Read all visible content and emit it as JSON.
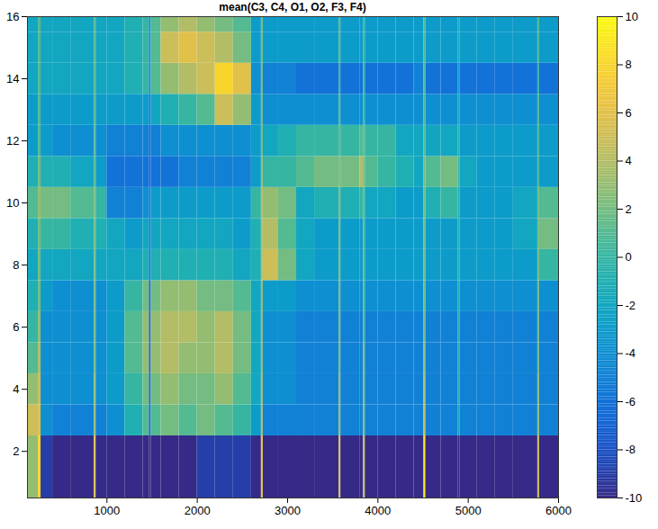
{
  "chart_data": {
    "type": "heatmap",
    "title": "mean(C3, C4, O1, O2, F3, F4)",
    "xlim": [
      120,
      6000
    ],
    "ylim": [
      0.5,
      16
    ],
    "xticks": [
      1000,
      2000,
      3000,
      4000,
      5000,
      6000
    ],
    "yticks": [
      2,
      4,
      6,
      8,
      10,
      12,
      14,
      16
    ],
    "x_edges": [
      120,
      240,
      270,
      400,
      600,
      860,
      880,
      1000,
      1200,
      1400,
      1470,
      1490,
      1600,
      1800,
      2000,
      2200,
      2400,
      2600,
      2710,
      2730,
      2900,
      3100,
      3300,
      3570,
      3590,
      3800,
      3840,
      3860,
      4000,
      4200,
      4400,
      4510,
      4530,
      4700,
      4890,
      4910,
      5100,
      5300,
      5500,
      5770,
      5790,
      6000
    ],
    "y_edges": [
      0.5,
      2.5,
      3.5,
      4.5,
      5.5,
      6.5,
      7.5,
      8.5,
      9.5,
      10.5,
      11.5,
      12.5,
      13.5,
      14.5,
      15.5,
      16
    ],
    "values": [
      [
        3,
        8,
        -9,
        -10,
        -10,
        6,
        -10,
        -10,
        -10,
        -10,
        -10,
        -10,
        -10,
        -10,
        -9,
        -9,
        -9,
        -10,
        7,
        -10,
        -10,
        -10,
        -10,
        6,
        -10,
        -10,
        5,
        -10,
        -10,
        -10,
        -10,
        9,
        -10,
        -10,
        -10,
        -10,
        -10,
        -10,
        -10,
        5,
        -10
      ],
      [
        5,
        6,
        -4,
        -5,
        -5,
        3,
        -5,
        -4,
        -1,
        1,
        -7,
        1,
        2,
        1,
        2,
        1,
        0,
        -3,
        4,
        -5,
        -5,
        -5,
        -5,
        3,
        -5,
        -5,
        2,
        -5,
        -5,
        -5,
        -5,
        5,
        -5,
        -5,
        -2,
        -5,
        -5,
        -5,
        -5,
        3,
        -5
      ],
      [
        3,
        5,
        -4,
        -4,
        -4,
        3,
        -4,
        -3,
        0,
        2,
        -7,
        2,
        3,
        2,
        2,
        3,
        1,
        -2,
        4,
        -4,
        -4,
        -5,
        -5,
        3,
        -5,
        -5,
        2,
        -5,
        -5,
        -5,
        -5,
        4,
        -5,
        -5,
        -1,
        -5,
        -5,
        -5,
        -5,
        3,
        -5
      ],
      [
        1,
        4,
        -4,
        -4,
        -4,
        2,
        -4,
        -3,
        1,
        3,
        -7,
        3,
        4,
        3,
        3,
        4,
        2,
        -2,
        3,
        -4,
        -4,
        -5,
        -5,
        2,
        -5,
        -5,
        2,
        -5,
        -5,
        -5,
        -5,
        3,
        -5,
        -5,
        -1,
        -5,
        -5,
        -5,
        -5,
        2,
        -5
      ],
      [
        0,
        3,
        -4,
        -4,
        -4,
        2,
        -4,
        -3,
        1,
        3,
        -7,
        3,
        4,
        4,
        3,
        4,
        2,
        -2,
        3,
        -4,
        -4,
        -5,
        -5,
        2,
        -5,
        -5,
        1,
        -5,
        -5,
        -5,
        -5,
        2,
        -5,
        -5,
        -1,
        -5,
        -5,
        -5,
        -5,
        2,
        -5
      ],
      [
        -1,
        2,
        -3,
        -4,
        -4,
        2,
        -4,
        -3,
        0,
        2,
        -7,
        2,
        3,
        3,
        2,
        2,
        1,
        -2,
        3,
        -3,
        -3,
        -4,
        -4,
        2,
        -4,
        -4,
        1,
        -4,
        -4,
        -4,
        -4,
        2,
        -4,
        -4,
        -1,
        -4,
        -4,
        -4,
        -4,
        2,
        -4
      ],
      [
        -2,
        2,
        -2,
        -2,
        -2,
        2,
        -2,
        -2,
        -2,
        -1,
        -6,
        -1,
        -1,
        -1,
        -1,
        -1,
        -2,
        -1,
        4,
        5,
        2,
        -2,
        -3,
        2,
        -3,
        -3,
        1,
        -3,
        -3,
        -3,
        -3,
        2,
        -3,
        -3,
        -1,
        -3,
        -3,
        -3,
        -3,
        2,
        0
      ],
      [
        -1,
        2,
        0,
        0,
        -1,
        2,
        -1,
        -2,
        -3,
        -2,
        -6,
        -2,
        -2,
        -2,
        -2,
        -2,
        -3,
        -1,
        4,
        4,
        1,
        -2,
        -3,
        2,
        -3,
        -3,
        1,
        -3,
        -3,
        -3,
        -3,
        2,
        -3,
        -3,
        -1,
        -3,
        -3,
        -3,
        -2,
        2,
        2
      ],
      [
        1,
        3,
        2,
        2,
        1,
        2,
        0,
        -5,
        -5,
        -4,
        -6,
        -3,
        -3,
        -3,
        -3,
        -3,
        -3,
        0,
        4,
        3,
        2,
        -2,
        -1,
        2,
        -1,
        0,
        1,
        -2,
        -2,
        -3,
        -3,
        2,
        -1,
        0,
        -1,
        -3,
        -3,
        -3,
        -2,
        2,
        1
      ],
      [
        -1,
        2,
        -1,
        -1,
        -2,
        1,
        -3,
        -6,
        -6,
        -6,
        -7,
        -6,
        -6,
        -5,
        -5,
        -5,
        -5,
        -3,
        3,
        0,
        0,
        1,
        2,
        2,
        2,
        4,
        2,
        1,
        0,
        -1,
        -2,
        2,
        1,
        2,
        0,
        -2,
        -3,
        -3,
        -3,
        1,
        -3
      ],
      [
        -3,
        1,
        -3,
        -4,
        -4,
        1,
        -4,
        -5,
        -5,
        -5,
        -7,
        -5,
        -4,
        -4,
        -4,
        -4,
        -4,
        -3,
        2,
        -2,
        -1,
        0,
        0,
        1,
        0,
        1,
        1,
        0,
        0,
        -2,
        -2,
        1,
        -2,
        -2,
        -1,
        -3,
        -3,
        -3,
        -3,
        1,
        -3
      ],
      [
        -3,
        1,
        -3,
        -3,
        -3,
        1,
        -3,
        -3,
        -3,
        -3,
        -6,
        -2,
        -1,
        0,
        1,
        5,
        3,
        -3,
        2,
        -4,
        -4,
        -4,
        -4,
        1,
        -4,
        -4,
        0,
        -4,
        -4,
        -4,
        -4,
        1,
        -4,
        -4,
        -2,
        -4,
        -4,
        -4,
        -4,
        1,
        -4
      ],
      [
        -2,
        1,
        -2,
        -2,
        -2,
        1,
        -2,
        -2,
        -1,
        0,
        -5,
        1,
        3,
        4,
        5,
        8,
        6,
        -4,
        2,
        -5,
        -5,
        -6,
        -6,
        0,
        -6,
        -6,
        0,
        -6,
        -6,
        -6,
        -5,
        1,
        -6,
        -6,
        -3,
        -6,
        -6,
        -6,
        -6,
        0,
        -6
      ],
      [
        -2,
        1,
        -2,
        -2,
        -2,
        1,
        -2,
        -2,
        -1,
        0,
        -5,
        1,
        5,
        6,
        5,
        4,
        2,
        -3,
        2,
        -3,
        -3,
        -3,
        -3,
        1,
        -3,
        -3,
        0,
        -3,
        -3,
        -3,
        -3,
        1,
        -3,
        -3,
        -2,
        -3,
        -3,
        -3,
        -3,
        1,
        -3
      ],
      [
        -2,
        1,
        -2,
        -2,
        -2,
        1,
        -2,
        -2,
        -1,
        0,
        -5,
        1,
        3,
        4,
        3,
        2,
        1,
        -3,
        2,
        -3,
        -3,
        -3,
        -3,
        1,
        -3,
        -3,
        0,
        -3,
        -3,
        -3,
        -3,
        1,
        -3,
        -3,
        -2,
        -3,
        -3,
        -3,
        -3,
        1,
        -3
      ]
    ],
    "colorbar": {
      "range": [
        -10,
        10
      ],
      "ticks": [
        -10,
        -8,
        -6,
        -4,
        -2,
        0,
        2,
        4,
        6,
        8,
        10
      ]
    }
  }
}
